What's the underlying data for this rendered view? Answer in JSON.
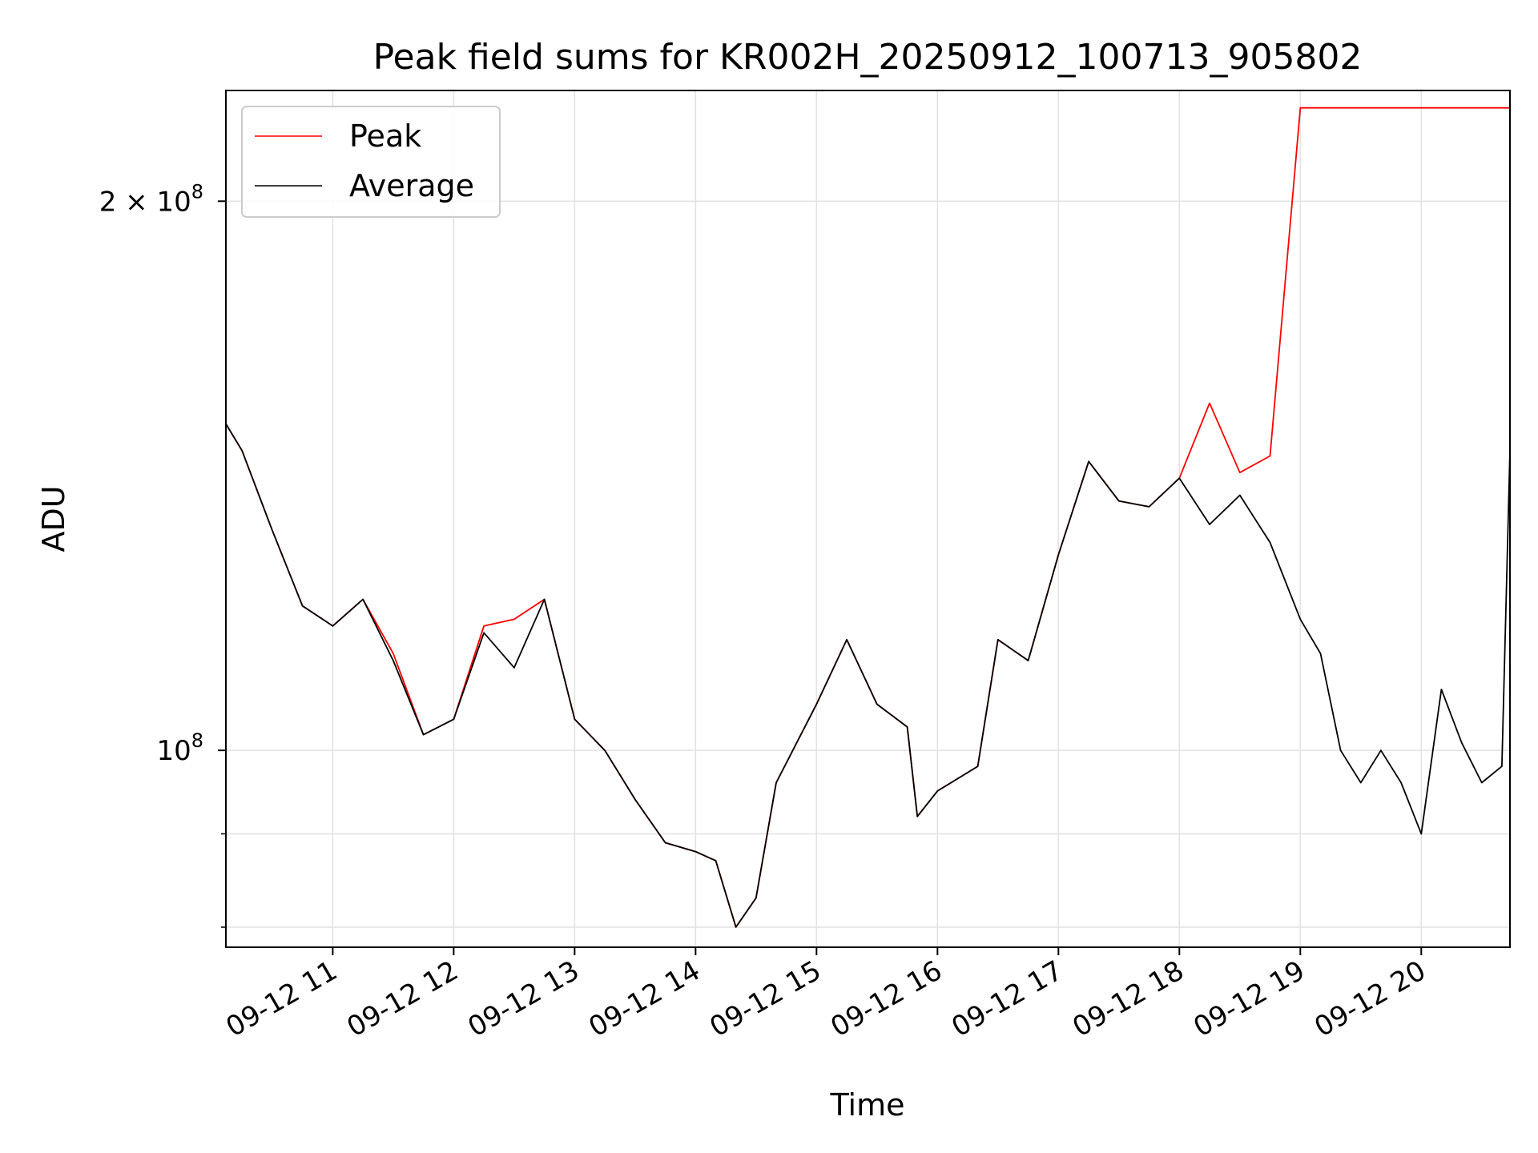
{
  "chart_data": {
    "type": "line",
    "title": "Peak field sums for KR002H_20250912_100713_905802",
    "xlabel": "Time",
    "ylabel": "ADU",
    "y_scale": "log",
    "xlim": [
      "2025-09-12 10:07",
      "2025-09-12 20:44"
    ],
    "ylim": [
      78000000,
      230000000
    ],
    "grid": true,
    "legend_position": "upper left",
    "x_ticks": [
      "09-12 11",
      "09-12 12",
      "09-12 13",
      "09-12 14",
      "09-12 15",
      "09-12 16",
      "09-12 17",
      "09-12 18",
      "09-12 19",
      "09-12 20"
    ],
    "y_ticks": [
      {
        "value": 100000000,
        "label_base": "10",
        "label_exp": "8"
      },
      {
        "value": 200000000,
        "label_base": "2 × 10",
        "label_exp": "8"
      }
    ],
    "y_minor_ticks": [
      80000000,
      90000000
    ],
    "x": [
      "10:07",
      "10:15",
      "10:30",
      "10:45",
      "11:00",
      "11:15",
      "11:30",
      "11:45",
      "12:00",
      "12:15",
      "12:30",
      "12:45",
      "13:00",
      "13:15",
      "13:30",
      "13:45",
      "14:00",
      "14:10",
      "14:20",
      "14:30",
      "14:40",
      "15:00",
      "15:15",
      "15:30",
      "15:45",
      "15:50",
      "16:00",
      "16:20",
      "16:30",
      "16:45",
      "17:00",
      "17:15",
      "17:30",
      "17:45",
      "18:00",
      "18:15",
      "18:30",
      "18:45",
      "19:00",
      "19:10",
      "19:20",
      "19:30",
      "19:40",
      "19:50",
      "20:00",
      "20:10",
      "20:20",
      "20:30",
      "20:40",
      "20:44"
    ],
    "series": [
      {
        "name": "Average",
        "color": "#000000",
        "values": [
          151000000,
          146000000,
          132000000,
          120000000,
          117000000,
          121000000,
          112000000,
          102000000,
          104000000,
          116000000,
          111000000,
          121000000,
          104000000,
          100000000,
          94000000,
          89000000,
          88000000,
          87000000,
          80000000,
          83000000,
          96000000,
          106000000,
          115000000,
          106000000,
          103000000,
          92000000,
          95000000,
          98000000,
          115000000,
          112000000,
          128000000,
          144000000,
          137000000,
          136000000,
          141000000,
          133000000,
          138000000,
          130000000,
          118000000,
          113000000,
          100000000,
          96000000,
          100000000,
          96000000,
          90000000,
          108000000,
          101000000,
          96000000,
          98000000,
          146000000
        ]
      },
      {
        "name": "Peak",
        "color": "#ff0000",
        "values": [
          151000000,
          146000000,
          132000000,
          120000000,
          117000000,
          121000000,
          113000000,
          102000000,
          104000000,
          117000000,
          118000000,
          121000000,
          104000000,
          100000000,
          94000000,
          89000000,
          88000000,
          87000000,
          80000000,
          83000000,
          96000000,
          106000000,
          115000000,
          106000000,
          103000000,
          92000000,
          95000000,
          98000000,
          115000000,
          112000000,
          128000000,
          144000000,
          137000000,
          136000000,
          141000000,
          155000000,
          142000000,
          145000000,
          225000000,
          225000000,
          225000000,
          225000000,
          225000000,
          225000000,
          225000000,
          225000000,
          225000000,
          225000000,
          225000000,
          225000000
        ]
      }
    ]
  }
}
